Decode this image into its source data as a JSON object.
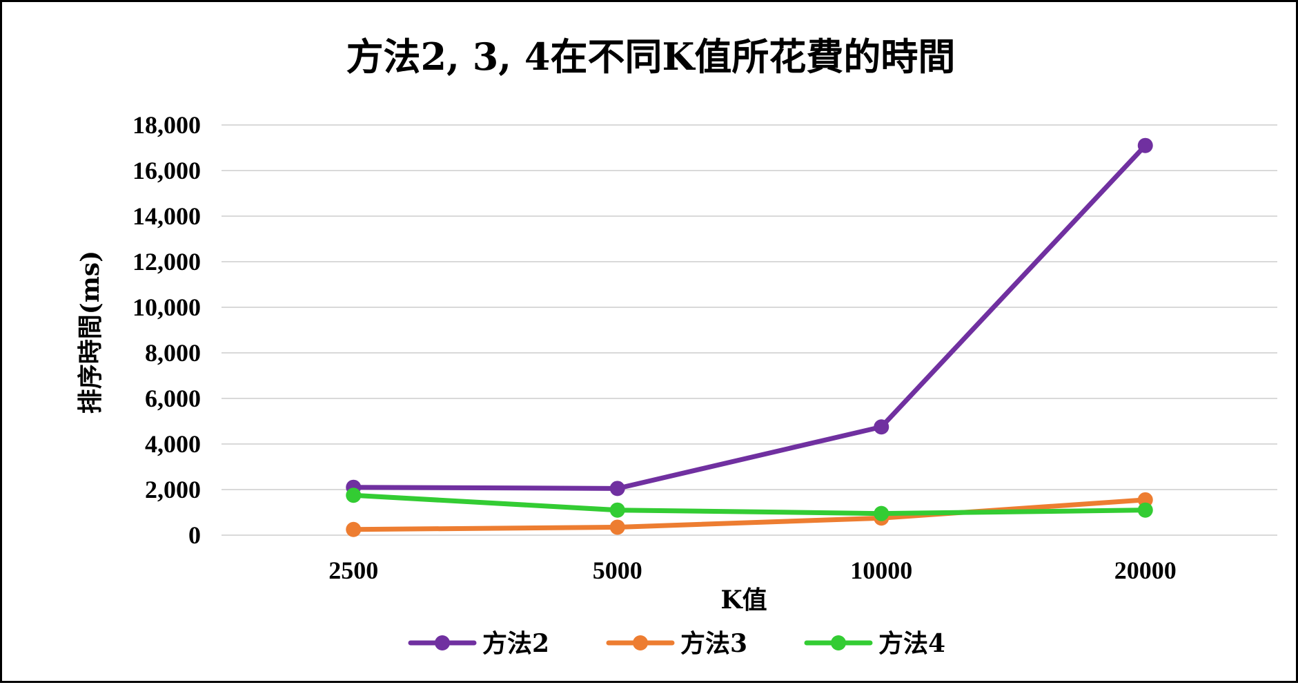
{
  "chart_data": {
    "type": "line",
    "title": "方法2, 3, 4在不同K值所花費的時間",
    "xlabel": "K值",
    "ylabel": "排序時間(ms)",
    "categories": [
      "2500",
      "5000",
      "10000",
      "20000"
    ],
    "ylim": [
      0,
      18000
    ],
    "yticks": [
      "0",
      "2,000",
      "4,000",
      "6,000",
      "8,000",
      "10,000",
      "12,000",
      "14,000",
      "16,000",
      "18,000"
    ],
    "ytick_values": [
      0,
      2000,
      4000,
      6000,
      8000,
      10000,
      12000,
      14000,
      16000,
      18000
    ],
    "grid": true,
    "legend_position": "bottom",
    "series": [
      {
        "name": "方法2",
        "color": "#7030a0",
        "values": [
          2100,
          2050,
          4750,
          17100
        ]
      },
      {
        "name": "方法3",
        "color": "#ed7d31",
        "values": [
          250,
          350,
          750,
          1550
        ]
      },
      {
        "name": "方法4",
        "color": "#33cc33",
        "values": [
          1750,
          1100,
          950,
          1100
        ]
      }
    ]
  }
}
